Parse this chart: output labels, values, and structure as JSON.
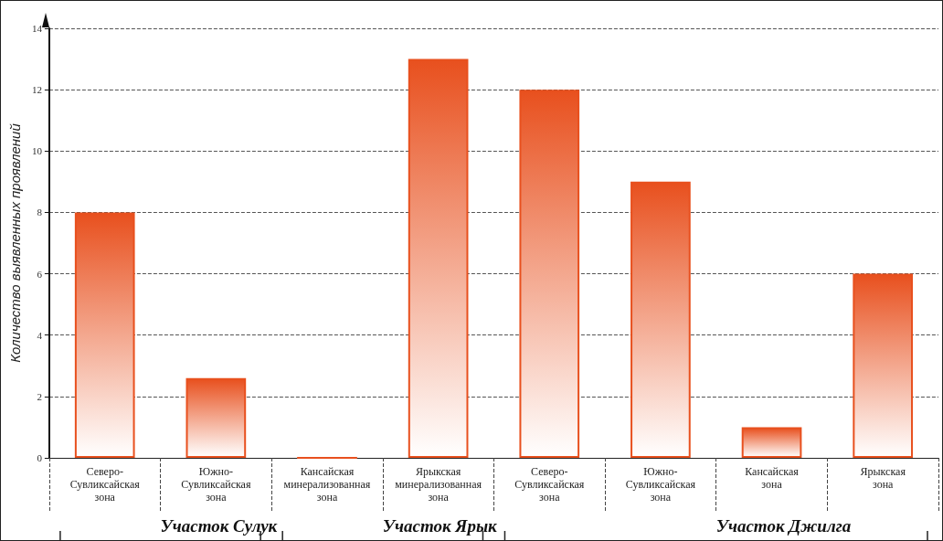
{
  "chart_data": {
    "type": "bar",
    "ylabel": "Количество выявленных проявлений",
    "categories": [
      "Северо-Сувликсайская зона",
      "Южно-Сувликсайская зона",
      "Кансайская минерализованная зона",
      "Ярыкская минерализованная зона",
      "Северо-Сувликсайская зона",
      "Южно-Сувликсайская зона",
      "Кансайская зона",
      "Ярыкская зона"
    ],
    "values": [
      8,
      2.6,
      0,
      13,
      12,
      9,
      1,
      6
    ],
    "color": "#e8501e",
    "ylim": [
      0,
      14
    ],
    "yticks": [
      0,
      2,
      4,
      6,
      8,
      10,
      12,
      14
    ],
    "grid": "y",
    "annotations": [
      "Участок Сулук",
      "Участок Ярык",
      "Участок Джилга"
    ]
  }
}
